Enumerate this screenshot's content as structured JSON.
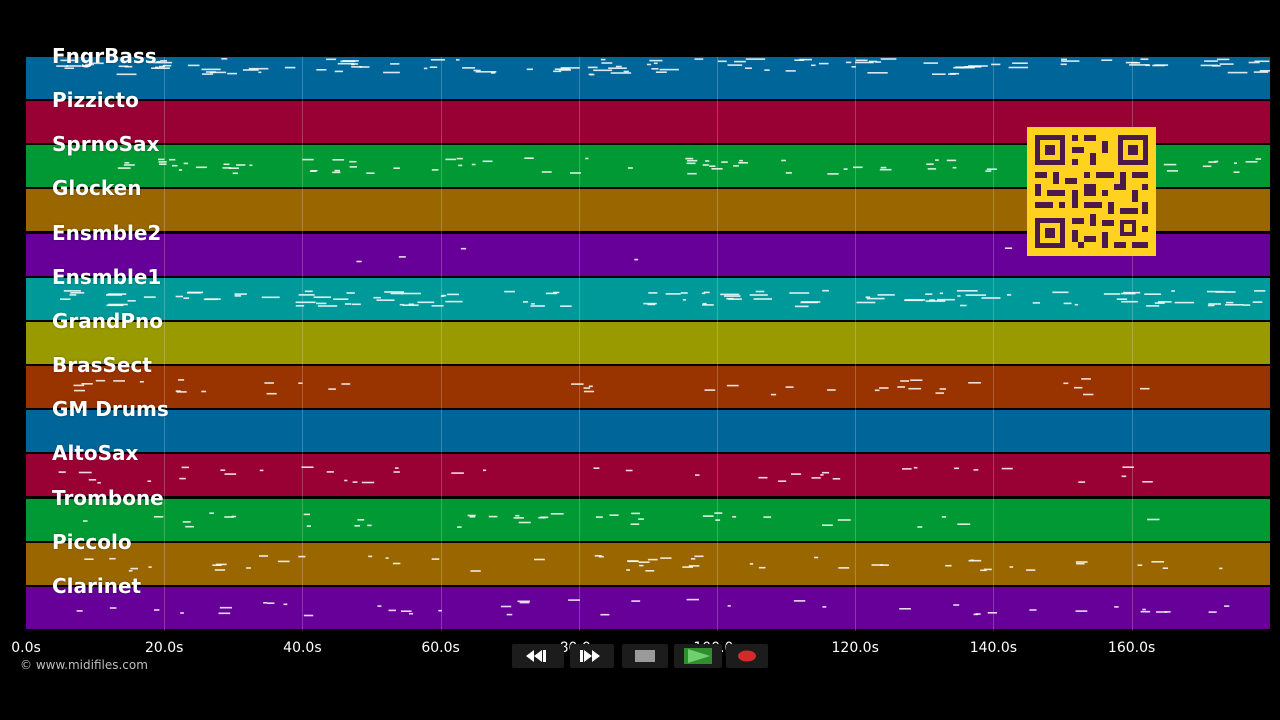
{
  "tracks": [
    {
      "name": "FngrBass",
      "color": "#006699"
    },
    {
      "name": "Pizzicto",
      "color": "#990033"
    },
    {
      "name": "SprnoSax",
      "color": "#009933"
    },
    {
      "name": "Glocken",
      "color": "#996600"
    },
    {
      "name": "Ensmble2",
      "color": "#660099"
    },
    {
      "name": "Ensmble1",
      "color": "#009999"
    },
    {
      "name": "GrandPno",
      "color": "#999900"
    },
    {
      "name": "BrasSect",
      "color": "#993300"
    },
    {
      "name": "GM Drums",
      "color": "#006699"
    },
    {
      "name": "AltoSax",
      "color": "#990033"
    },
    {
      "name": "Trombone",
      "color": "#009933"
    },
    {
      "name": "Piccolo",
      "color": "#996600"
    },
    {
      "name": "Clarinet",
      "color": "#660099"
    }
  ],
  "timeline": {
    "tick_labels": [
      "0.0s",
      "20.0s",
      "40.0s",
      "60.0s",
      "80.0s",
      "100.0s",
      "120.0s",
      "140.0s",
      "160.0s"
    ]
  },
  "footer": {
    "copyright": "© www.midifiles.com"
  },
  "transport": {
    "rewind_icon": "rewind-icon",
    "forward_icon": "fast-forward-icon",
    "stop_icon": "stop-icon",
    "play_icon": "play-icon",
    "record_icon": "record-icon",
    "play_color": "#2f8f2f",
    "record_color": "#d42a2a"
  },
  "overlay": {
    "qr_icon": "qr-code-icon",
    "qr_color": "#ffd21f"
  }
}
